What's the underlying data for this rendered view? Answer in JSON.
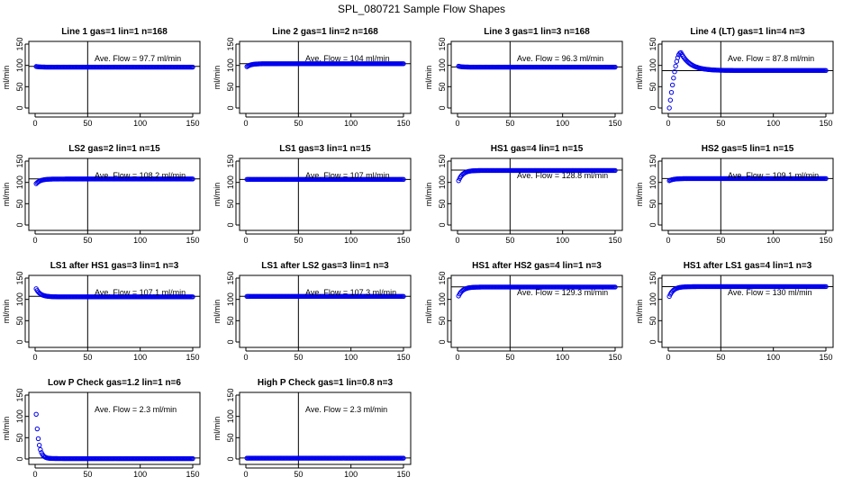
{
  "figure": {
    "title": "SPL_080721  Sample Flow Shapes"
  },
  "chart_data": [
    {
      "type": "scatter",
      "title": "Line 1 gas=1 lin=1 n=168",
      "ylabel": "ml/min",
      "xlim": [
        0,
        150
      ],
      "ylim": [
        0,
        150
      ],
      "xticks": [
        0,
        50,
        100,
        150
      ],
      "yticks": [
        0,
        50,
        100,
        150
      ],
      "annotation": "Ave. Flow =  97.7  ml/min",
      "hlines": [
        97.7
      ],
      "vlines": [
        50
      ],
      "series": [
        {
          "shape": "flat",
          "start": 98,
          "level": 96
        }
      ]
    },
    {
      "type": "scatter",
      "title": "Line 2 gas=1 lin=2 n=168",
      "ylabel": "ml/min",
      "xlim": [
        0,
        150
      ],
      "ylim": [
        0,
        150
      ],
      "xticks": [
        0,
        50,
        100,
        150
      ],
      "yticks": [
        0,
        50,
        100,
        150
      ],
      "annotation": "Ave. Flow =  104  ml/min",
      "hlines": [
        104
      ],
      "vlines": [
        50
      ],
      "series": [
        {
          "shape": "rise",
          "start": 97,
          "level": 104
        }
      ]
    },
    {
      "type": "scatter",
      "title": "Line 3 gas=1 lin=3 n=168",
      "ylabel": "ml/min",
      "xlim": [
        0,
        150
      ],
      "ylim": [
        0,
        150
      ],
      "xticks": [
        0,
        50,
        100,
        150
      ],
      "yticks": [
        0,
        50,
        100,
        150
      ],
      "annotation": "Ave. Flow =  96.3  ml/min",
      "hlines": [
        96.3
      ],
      "vlines": [
        50
      ],
      "series": [
        {
          "shape": "flat",
          "start": 99,
          "level": 96
        }
      ]
    },
    {
      "type": "scatter",
      "title": "Line 4 (LT) gas=1 lin=4 n=3",
      "ylabel": "ml/min",
      "xlim": [
        0,
        150
      ],
      "ylim": [
        0,
        150
      ],
      "xticks": [
        0,
        50,
        100,
        150
      ],
      "yticks": [
        0,
        50,
        100,
        150
      ],
      "annotation": "Ave. Flow =  87.8  ml/min",
      "hlines": [
        87.8
      ],
      "vlines": [
        50
      ],
      "series": [
        {
          "shape": "overshoot",
          "start": 0,
          "peak": 130,
          "peak_x": 12,
          "level": 88
        }
      ]
    },
    {
      "type": "scatter",
      "title": "LS2 gas=2 lin=1 n=15",
      "ylabel": "ml/min",
      "xlim": [
        0,
        150
      ],
      "ylim": [
        0,
        150
      ],
      "xticks": [
        0,
        50,
        100,
        150
      ],
      "yticks": [
        0,
        50,
        100,
        150
      ],
      "annotation": "Ave. Flow =  108.2  ml/min",
      "hlines": [
        108.2
      ],
      "vlines": [
        50
      ],
      "series": [
        {
          "shape": "rise",
          "start": 97,
          "level": 108
        }
      ]
    },
    {
      "type": "scatter",
      "title": "LS1 gas=3 lin=1 n=15",
      "ylabel": "ml/min",
      "xlim": [
        0,
        150
      ],
      "ylim": [
        0,
        150
      ],
      "xticks": [
        0,
        50,
        100,
        150
      ],
      "yticks": [
        0,
        50,
        100,
        150
      ],
      "annotation": "Ave. Flow =  107  ml/min",
      "hlines": [
        107
      ],
      "vlines": [
        50
      ],
      "series": [
        {
          "shape": "flat",
          "start": 107,
          "level": 107
        }
      ]
    },
    {
      "type": "scatter",
      "title": "HS1 gas=4 lin=1 n=15",
      "ylabel": "ml/min",
      "xlim": [
        0,
        150
      ],
      "ylim": [
        0,
        150
      ],
      "xticks": [
        0,
        50,
        100,
        150
      ],
      "yticks": [
        0,
        50,
        100,
        150
      ],
      "annotation": "Ave. Flow =  128.8  ml/min",
      "hlines": [
        128.8
      ],
      "vlines": [
        50
      ],
      "series": [
        {
          "shape": "rise",
          "start": 104,
          "level": 128
        }
      ]
    },
    {
      "type": "scatter",
      "title": "HS2 gas=5 lin=1 n=15",
      "ylabel": "ml/min",
      "xlim": [
        0,
        150
      ],
      "ylim": [
        0,
        150
      ],
      "xticks": [
        0,
        50,
        100,
        150
      ],
      "yticks": [
        0,
        50,
        100,
        150
      ],
      "annotation": "Ave. Flow =  109.1  ml/min",
      "hlines": [
        109.1
      ],
      "vlines": [
        50
      ],
      "series": [
        {
          "shape": "rise",
          "start": 104,
          "level": 109
        }
      ]
    },
    {
      "type": "scatter",
      "title": "LS1 after HS1 gas=3 lin=1 n=3",
      "ylabel": "ml/min",
      "xlim": [
        0,
        150
      ],
      "ylim": [
        0,
        150
      ],
      "xticks": [
        0,
        50,
        100,
        150
      ],
      "yticks": [
        0,
        50,
        100,
        150
      ],
      "annotation": "Ave. Flow =  107.1  ml/min",
      "hlines": [
        107.1
      ],
      "vlines": [
        50
      ],
      "series": [
        {
          "shape": "fall",
          "start": 125,
          "level": 106
        }
      ]
    },
    {
      "type": "scatter",
      "title": "LS1 after LS2 gas=3 lin=1 n=3",
      "ylabel": "ml/min",
      "xlim": [
        0,
        150
      ],
      "ylim": [
        0,
        150
      ],
      "xticks": [
        0,
        50,
        100,
        150
      ],
      "yticks": [
        0,
        50,
        100,
        150
      ],
      "annotation": "Ave. Flow =  107.3  ml/min",
      "hlines": [
        107.3
      ],
      "vlines": [
        50
      ],
      "series": [
        {
          "shape": "flat",
          "start": 107,
          "level": 107
        }
      ]
    },
    {
      "type": "scatter",
      "title": "HS1 after HS2 gas=4 lin=1 n=3",
      "ylabel": "ml/min",
      "xlim": [
        0,
        150
      ],
      "ylim": [
        0,
        150
      ],
      "xticks": [
        0,
        50,
        100,
        150
      ],
      "yticks": [
        0,
        50,
        100,
        150
      ],
      "annotation": "Ave. Flow =  129.3  ml/min",
      "hlines": [
        129.3
      ],
      "vlines": [
        50
      ],
      "series": [
        {
          "shape": "rise",
          "start": 108,
          "level": 129
        }
      ]
    },
    {
      "type": "scatter",
      "title": "HS1 after LS1 gas=4 lin=1 n=3",
      "ylabel": "ml/min",
      "xlim": [
        0,
        150
      ],
      "ylim": [
        0,
        150
      ],
      "xticks": [
        0,
        50,
        100,
        150
      ],
      "yticks": [
        0,
        50,
        100,
        150
      ],
      "annotation": "Ave. Flow =  130  ml/min",
      "hlines": [
        130
      ],
      "vlines": [
        50
      ],
      "series": [
        {
          "shape": "rise",
          "start": 107,
          "level": 130
        }
      ]
    },
    {
      "type": "scatter",
      "title": "Low P Check gas=1.2 lin=1 n=6",
      "ylabel": "ml/min",
      "xlim": [
        0,
        150
      ],
      "ylim": [
        0,
        150
      ],
      "xticks": [
        0,
        50,
        100,
        150
      ],
      "yticks": [
        0,
        50,
        100,
        150
      ],
      "annotation": "Ave. Flow =  2.3  ml/min",
      "hlines": [
        2.3
      ],
      "vlines": [
        50
      ],
      "series": [
        {
          "shape": "decay",
          "start": 105,
          "level": 1
        }
      ]
    },
    {
      "type": "scatter",
      "title": "High P Check gas=1 lin=0.8 n=3",
      "ylabel": "ml/min",
      "xlim": [
        0,
        150
      ],
      "ylim": [
        0,
        150
      ],
      "xticks": [
        0,
        50,
        100,
        150
      ],
      "yticks": [
        0,
        50,
        100,
        150
      ],
      "annotation": "Ave. Flow =  2.3  ml/min",
      "hlines": [
        2.3
      ],
      "vlines": [
        50
      ],
      "series": [
        {
          "shape": "flat",
          "start": 2,
          "level": 2
        }
      ]
    }
  ]
}
